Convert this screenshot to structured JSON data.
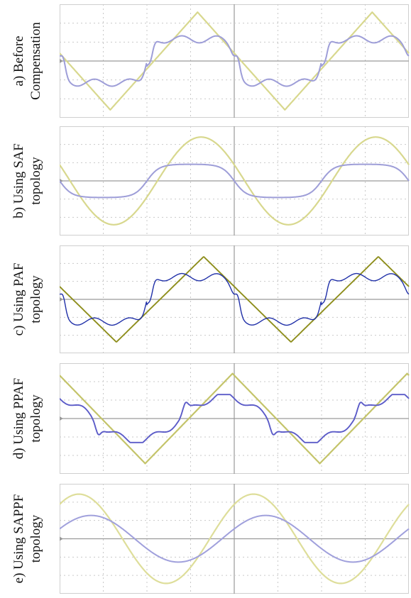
{
  "colors": {
    "background": "#ffffff",
    "grid": "#c9c9c9",
    "grid_center": "#9a9a9a",
    "frame": "#cfcfcf"
  },
  "chart_data": [
    {
      "type": "line",
      "label_lines": [
        "a) Before",
        "Compensation"
      ],
      "title": "",
      "x_range_cycles": 2,
      "ylim": [
        -1,
        1
      ],
      "grid": true,
      "series": [
        {
          "color": "#d8d88e",
          "shape": "triangle",
          "amplitude": 0.93,
          "phase_cycles": 0.46,
          "width": 2.2
        },
        {
          "color": "#9e9ed8",
          "shape": "distorted-quasi-square",
          "amplitude": 0.48,
          "phase_cycles": 0.5,
          "width": 2.0
        }
      ]
    },
    {
      "type": "line",
      "label_lines": [
        "b) Using SAF",
        "topology"
      ],
      "title": "",
      "x_range_cycles": 2,
      "ylim": [
        -1,
        1
      ],
      "grid": true,
      "series": [
        {
          "color": "#d8d88e",
          "shape": "sine",
          "amplitude": 0.87,
          "phase_cycles": 0.44,
          "width": 2.2
        },
        {
          "color": "#9e9ed8",
          "shape": "flattened-sine",
          "amplitude": 0.33,
          "phase_cycles": 0.5,
          "width": 2.0
        }
      ]
    },
    {
      "type": "line",
      "label_lines": [
        "c) Using PAF",
        "topology"
      ],
      "title": "",
      "x_range_cycles": 2,
      "ylim": [
        -1,
        1
      ],
      "grid": true,
      "series": [
        {
          "color": "#8e8e1c",
          "shape": "triangle",
          "amplitude": 0.86,
          "phase_cycles": 0.425,
          "width": 1.9
        },
        {
          "color": "#1f2fa8",
          "shape": "distorted-quasi-square",
          "amplitude": 0.52,
          "phase_cycles": 0.5,
          "width": 1.4
        }
      ]
    },
    {
      "type": "line",
      "label_lines": [
        "d) Using PPAF",
        "topology"
      ],
      "title": "",
      "x_range_cycles": 2,
      "ylim": [
        -1,
        1
      ],
      "grid": true,
      "series": [
        {
          "color": "#c4c46a",
          "shape": "triangle",
          "amplitude": 0.88,
          "phase_cycles": 0.26,
          "width": 2.2
        },
        {
          "color": "#5b5bc8",
          "shape": "distorted-sine",
          "amplitude": 0.47,
          "phase_cycles": 0.31,
          "width": 1.9
        }
      ]
    },
    {
      "type": "line",
      "label_lines": [
        "e) Using SAPPF",
        "topology"
      ],
      "title": "",
      "x_range_cycles": 2,
      "ylim": [
        -1,
        1
      ],
      "grid": true,
      "series": [
        {
          "color": "#dede9a",
          "shape": "sine",
          "amplitude": 0.88,
          "phase_cycles": 0.14,
          "width": 2.2
        },
        {
          "color": "#a0a0dc",
          "shape": "sine",
          "amplitude": 0.46,
          "phase_cycles": 0.07,
          "width": 2.0
        }
      ]
    }
  ]
}
